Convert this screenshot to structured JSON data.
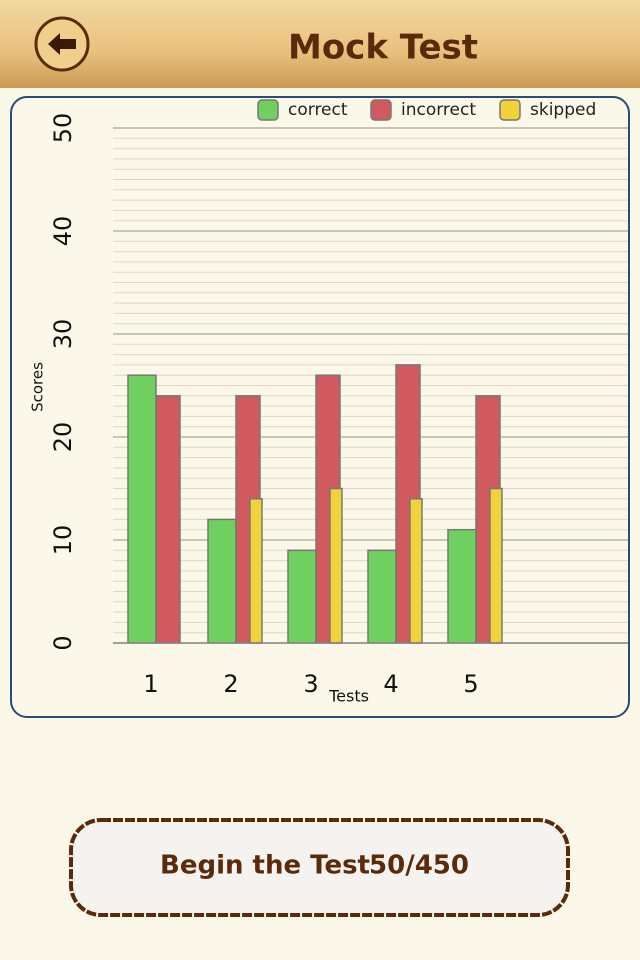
{
  "header": {
    "title": "Mock Test"
  },
  "chart_data": {
    "type": "bar",
    "x_label": "Tests",
    "y_label": "Scores",
    "categories": [
      "1",
      "2",
      "3",
      "4",
      "5"
    ],
    "series": [
      {
        "name": "correct",
        "color": "#6fcf5f",
        "values": [
          26,
          12,
          9,
          9,
          11
        ]
      },
      {
        "name": "incorrect",
        "color": "#d15a5e",
        "values": [
          24,
          24,
          26,
          27,
          24
        ]
      },
      {
        "name": "skipped",
        "color": "#f2d23a",
        "values": [
          0,
          14,
          15,
          14,
          15
        ]
      }
    ],
    "ylim": [
      0,
      50
    ],
    "yticks": [
      0,
      10,
      20,
      30,
      40,
      50
    ],
    "grid": true,
    "legend": "top"
  },
  "button": {
    "label": "Begin the Test",
    "count": "50/450"
  }
}
